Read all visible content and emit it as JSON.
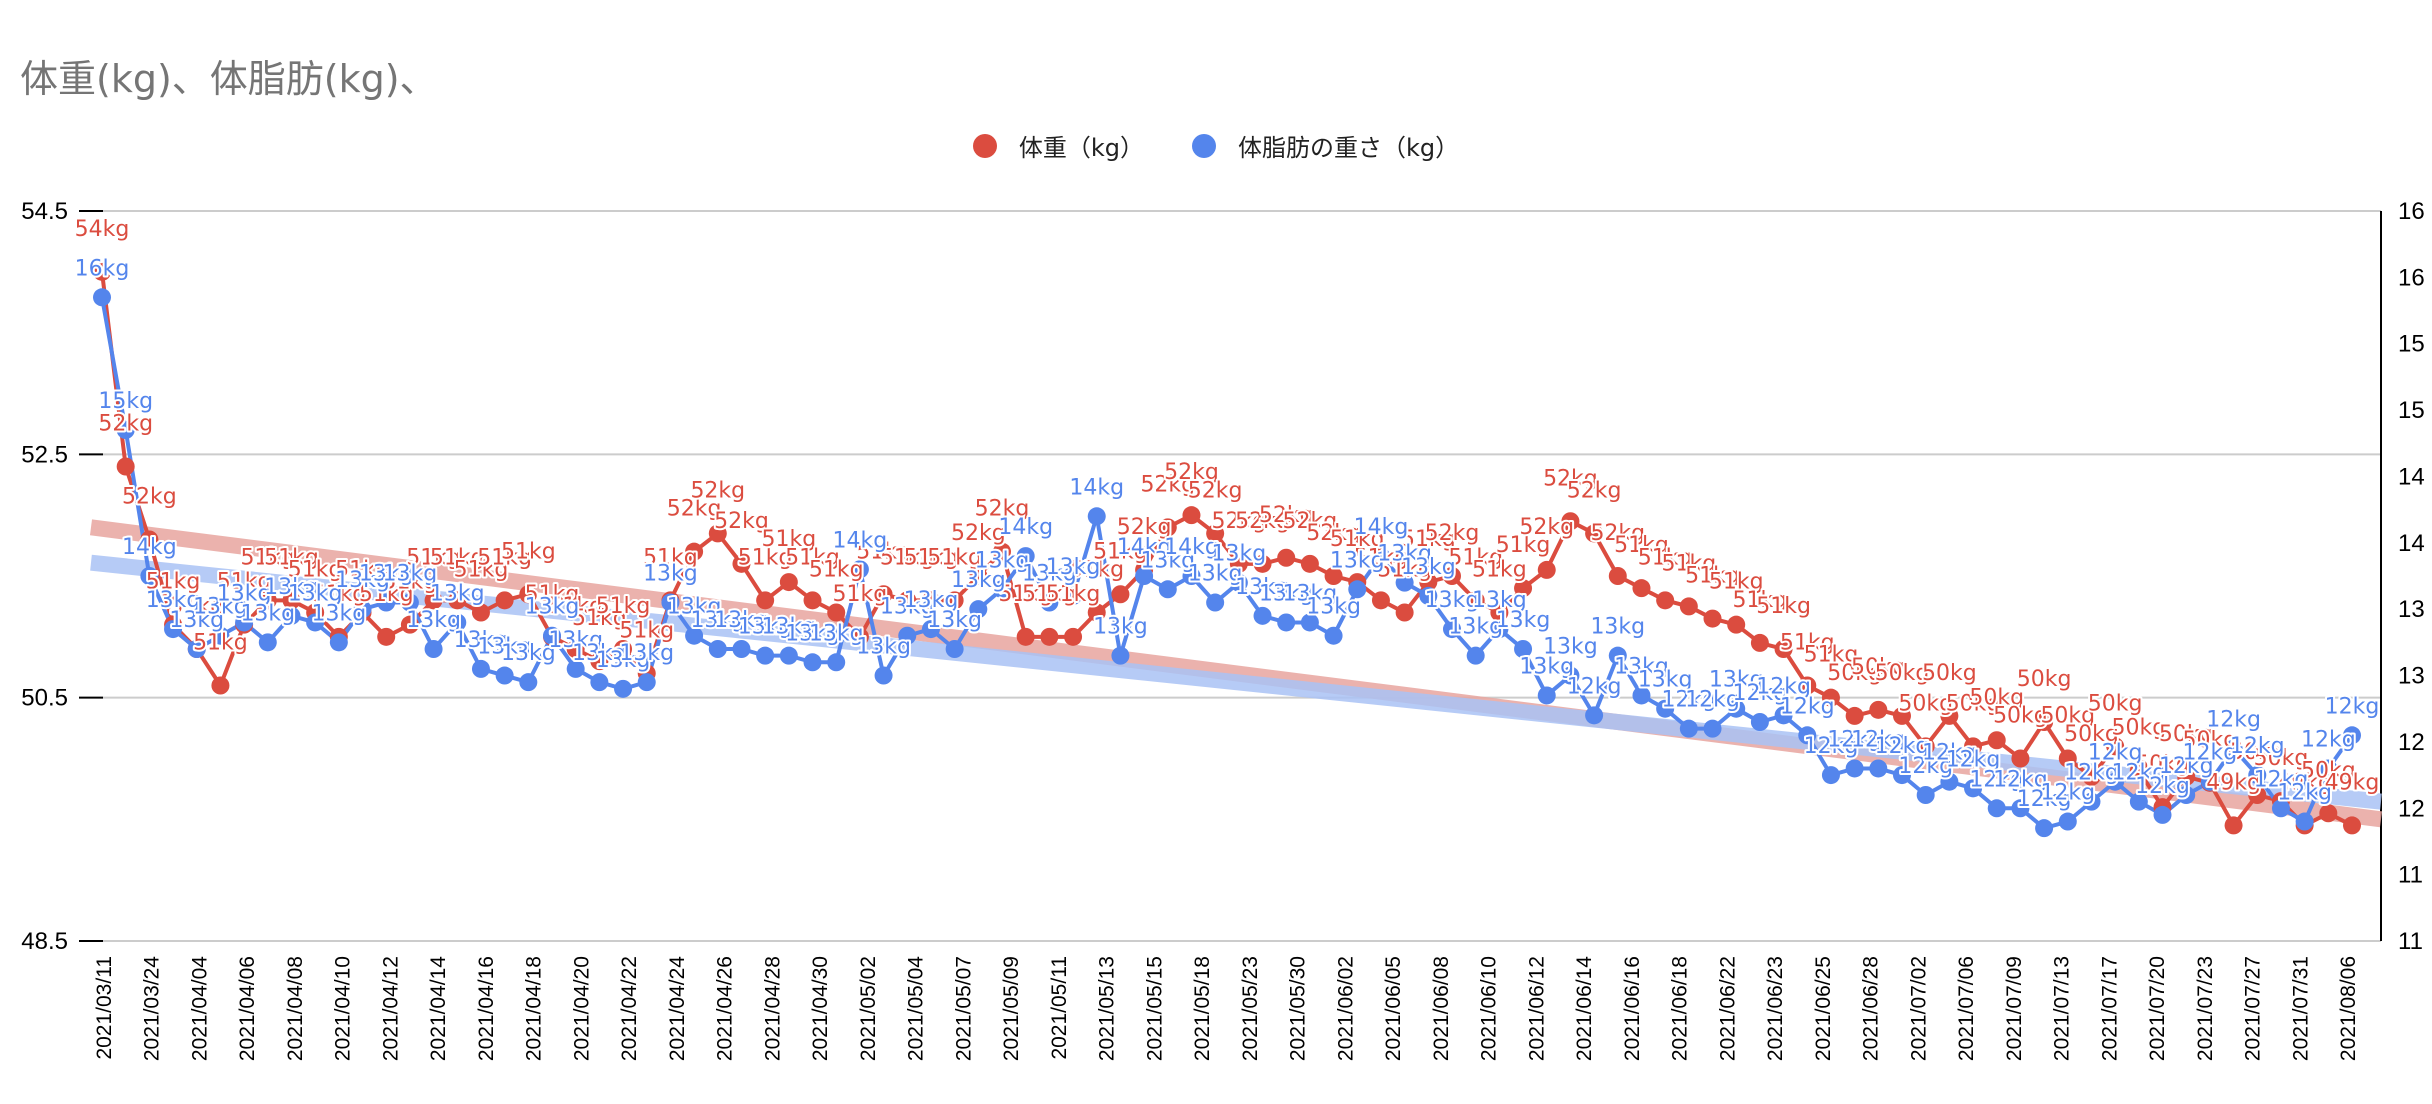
{
  "chart_data": {
    "type": "line",
    "title": "体重(kg)、体脂肪(kg)、",
    "legend_position": "top",
    "legend": [
      {
        "name": "体重（kg）",
        "color": "#db4c3f"
      },
      {
        "name": "体脂肪の重さ（kg）",
        "color": "#5485ec"
      }
    ],
    "y_left": {
      "range": [
        48.5,
        54.5
      ],
      "ticks": [
        "54.5",
        "52.5",
        "50.5",
        "48.5"
      ],
      "tick_values": [
        54.5,
        52.5,
        50.5,
        48.5
      ]
    },
    "y_right": {
      "range": [
        10.75,
        16.25
      ],
      "ticks": [
        "16",
        "16",
        "15",
        "15",
        "14",
        "14",
        "13",
        "13",
        "12",
        "12",
        "11",
        "11"
      ]
    },
    "grid": true,
    "x_tick_labels": [
      "2021/03/11",
      "2021/03/24",
      "2021/04/04",
      "2021/04/06",
      "2021/04/08",
      "2021/04/10",
      "2021/04/12",
      "2021/04/14",
      "2021/04/16",
      "2021/04/18",
      "2021/04/20",
      "2021/04/22",
      "2021/04/24",
      "2021/04/26",
      "2021/04/28",
      "2021/04/30",
      "2021/05/02",
      "2021/05/04",
      "2021/05/07",
      "2021/05/09",
      "2021/05/11",
      "2021/05/13",
      "2021/05/15",
      "2021/05/18",
      "2021/05/23",
      "2021/05/30",
      "2021/06/02",
      "2021/06/05",
      "2021/06/08",
      "2021/06/10",
      "2021/06/12",
      "2021/06/14",
      "2021/06/16",
      "2021/06/18",
      "2021/06/22",
      "2021/06/23",
      "2021/06/25",
      "2021/06/28",
      "2021/07/02",
      "2021/07/06",
      "2021/07/09",
      "2021/07/13",
      "2021/07/17",
      "2021/07/20",
      "2021/07/23",
      "2021/07/27",
      "2021/07/31",
      "2021/08/06"
    ],
    "series": [
      {
        "name": "体重（kg）",
        "axis": "left",
        "color": "#db4c3f",
        "label_suffix": "kg",
        "values": [
          54.0,
          52.4,
          51.8,
          51.1,
          50.9,
          50.6,
          51.1,
          51.3,
          51.3,
          51.2,
          51.0,
          51.2,
          51.0,
          51.1,
          51.3,
          51.3,
          51.2,
          51.3,
          51.35,
          51.0,
          50.9,
          50.8,
          50.9,
          50.7,
          51.3,
          51.7,
          51.85,
          51.6,
          51.3,
          51.45,
          51.3,
          51.2,
          51.0,
          51.35,
          51.3,
          51.3,
          51.3,
          51.5,
          51.7,
          51.0,
          51.0,
          51.0,
          51.2,
          51.35,
          51.55,
          51.9,
          52.0,
          51.85,
          51.6,
          51.6,
          51.65,
          51.6,
          51.5,
          51.45,
          51.3,
          51.2,
          51.45,
          51.5,
          51.3,
          51.2,
          51.4,
          51.55,
          51.95,
          51.85,
          51.5,
          51.4,
          51.3,
          51.25,
          51.15,
          51.1,
          50.95,
          50.9,
          50.6,
          50.5,
          50.35,
          50.4,
          50.35,
          50.1,
          50.35,
          50.1,
          50.15,
          50.0,
          50.3,
          50.0,
          49.85,
          50.1,
          49.9,
          49.6,
          49.85,
          49.8,
          49.45,
          49.7,
          49.65,
          49.45,
          49.55,
          49.45
        ]
      },
      {
        "name": "体脂肪の重さ（kg）",
        "axis": "right",
        "color": "#5485ec",
        "label_suffix": "kg",
        "values": [
          15.6,
          14.6,
          13.5,
          13.1,
          12.95,
          13.05,
          13.15,
          13.0,
          13.2,
          13.15,
          13.0,
          13.25,
          13.3,
          13.3,
          12.95,
          13.15,
          12.8,
          12.75,
          12.7,
          13.05,
          12.8,
          12.7,
          12.65,
          12.7,
          13.3,
          13.05,
          12.95,
          12.95,
          12.9,
          12.9,
          12.85,
          12.85,
          13.55,
          12.75,
          13.05,
          13.1,
          12.95,
          13.25,
          13.4,
          13.65,
          13.3,
          13.35,
          13.95,
          12.9,
          13.5,
          13.4,
          13.5,
          13.3,
          13.45,
          13.2,
          13.15,
          13.15,
          13.05,
          13.4,
          13.65,
          13.45,
          13.35,
          13.1,
          12.9,
          13.1,
          12.95,
          12.6,
          12.75,
          12.45,
          12.9,
          12.6,
          12.5,
          12.35,
          12.35,
          12.5,
          12.4,
          12.45,
          12.3,
          12.0,
          12.05,
          12.05,
          12.0,
          11.85,
          11.95,
          11.9,
          11.75,
          11.75,
          11.6,
          11.65,
          11.8,
          11.95,
          11.8,
          11.7,
          11.85,
          11.95,
          12.2,
          12.0,
          11.75,
          11.65,
          12.05,
          12.3
        ]
      }
    ],
    "trendlines": [
      {
        "series": "体重（kg）",
        "color": "#e8a59f",
        "start": 51.9,
        "end": 49.5
      },
      {
        "series": "体脂肪の重さ（kg）",
        "color": "#a9c2f5",
        "start": 13.6,
        "end": 11.8
      }
    ]
  }
}
